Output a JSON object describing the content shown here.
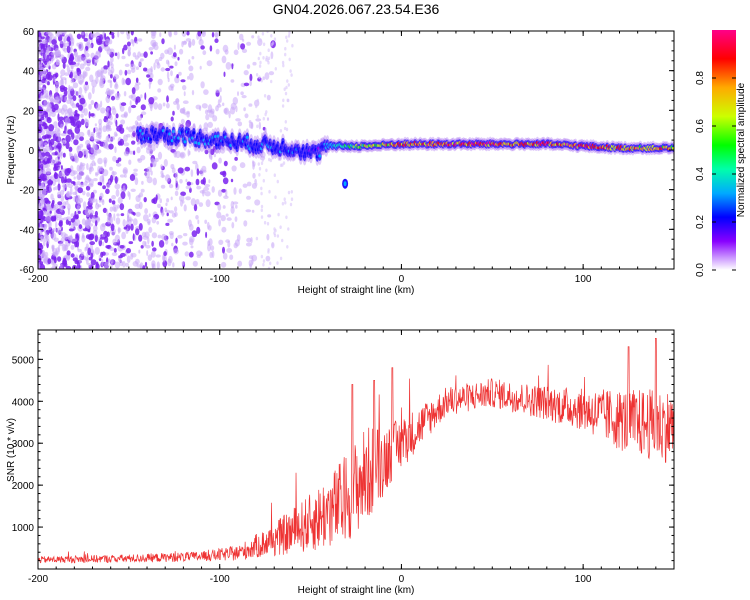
{
  "title": "GN04.2026.067.23.54.E36",
  "chart_data": [
    {
      "type": "heatmap",
      "title": "GN04.2026.067.23.54.E36",
      "xlabel": "Height of straight line (km)",
      "ylabel": "Frequency (Hz)",
      "xlim": [
        -200,
        150
      ],
      "ylim": [
        -60,
        60
      ],
      "x_ticks": [
        -200,
        -100,
        0,
        100
      ],
      "y_ticks": [
        -60,
        -40,
        -20,
        0,
        20,
        40,
        60
      ],
      "colorbar": {
        "label": "Normalized spectral amplitude",
        "range": [
          0,
          1
        ],
        "ticks": [
          0.0,
          0.2,
          0.4,
          0.6,
          0.8
        ],
        "colors": [
          "#ffffff",
          "#cc99ff",
          "#8800ff",
          "#0000ff",
          "#00aaff",
          "#00ffaa",
          "#00ff00",
          "#ccff00",
          "#ffaa00",
          "#ff0000",
          "#ff0088"
        ]
      },
      "ridge": [
        {
          "x": -140,
          "y": 8,
          "level": 0.35
        },
        {
          "x": -120,
          "y": 7,
          "level": 0.4
        },
        {
          "x": -100,
          "y": 5,
          "level": 0.35
        },
        {
          "x": -80,
          "y": 3,
          "level": 0.35
        },
        {
          "x": -60,
          "y": 1,
          "level": 0.35
        },
        {
          "x": -48,
          "y": -2,
          "level": 0.3
        },
        {
          "x": -40,
          "y": 2,
          "level": 0.4
        },
        {
          "x": -20,
          "y": 2,
          "level": 0.7
        },
        {
          "x": 0,
          "y": 3,
          "level": 0.85
        },
        {
          "x": 20,
          "y": 3,
          "level": 0.95
        },
        {
          "x": 50,
          "y": 3,
          "level": 0.95
        },
        {
          "x": 80,
          "y": 3,
          "level": 0.95
        },
        {
          "x": 100,
          "y": 2,
          "level": 0.9
        },
        {
          "x": 120,
          "y": 1,
          "level": 0.85
        },
        {
          "x": 150,
          "y": 1,
          "level": 0.8
        }
      ]
    },
    {
      "type": "line",
      "xlabel": "Height of straight line (km)",
      "ylabel": "SNR (10 * v/v)",
      "xlim": [
        -200,
        150
      ],
      "ylim": [
        0,
        5700
      ],
      "x_ticks": [
        -200,
        -100,
        0,
        100
      ],
      "y_ticks": [
        1000,
        2000,
        3000,
        4000,
        5000
      ],
      "color": "#ee3333",
      "envelope": [
        {
          "x": -200,
          "mean": 220,
          "spread": 80
        },
        {
          "x": -150,
          "mean": 250,
          "spread": 100
        },
        {
          "x": -110,
          "mean": 300,
          "spread": 120
        },
        {
          "x": -90,
          "mean": 380,
          "spread": 180
        },
        {
          "x": -70,
          "mean": 700,
          "spread": 400
        },
        {
          "x": -50,
          "mean": 1100,
          "spread": 700
        },
        {
          "x": -35,
          "mean": 1500,
          "spread": 1000
        },
        {
          "x": -20,
          "mean": 2200,
          "spread": 1200
        },
        {
          "x": -5,
          "mean": 2800,
          "spread": 700
        },
        {
          "x": 10,
          "mean": 3400,
          "spread": 500
        },
        {
          "x": 25,
          "mean": 4000,
          "spread": 350
        },
        {
          "x": 50,
          "mean": 4200,
          "spread": 350
        },
        {
          "x": 75,
          "mean": 4000,
          "spread": 400
        },
        {
          "x": 100,
          "mean": 3800,
          "spread": 500
        },
        {
          "x": 125,
          "mean": 3500,
          "spread": 800
        },
        {
          "x": 150,
          "mean": 3400,
          "spread": 900
        }
      ],
      "peaks": [
        {
          "x": -27,
          "y": 4400
        },
        {
          "x": -15,
          "y": 4500
        },
        {
          "x": -5,
          "y": 4800
        },
        {
          "x": 125,
          "y": 5300
        },
        {
          "x": 140,
          "y": 5500
        }
      ]
    }
  ]
}
